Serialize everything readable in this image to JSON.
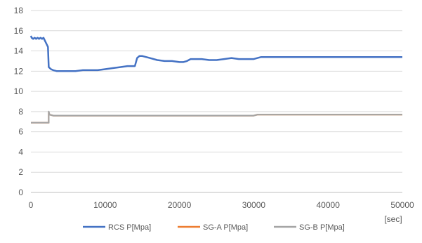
{
  "chart_data": {
    "type": "line",
    "title": "",
    "xlabel": "[sec]",
    "ylabel": "",
    "xlim": [
      0,
      50000
    ],
    "ylim": [
      0,
      18
    ],
    "x_ticks": [
      0,
      10000,
      20000,
      30000,
      40000,
      50000
    ],
    "y_ticks": [
      0,
      2,
      4,
      6,
      8,
      10,
      12,
      14,
      16,
      18
    ],
    "grid": "horizontal",
    "legend_position": "bottom",
    "series": [
      {
        "name": "RCS P[Mpa]",
        "color": "#4472C4",
        "x": [
          0,
          100,
          300,
          500,
          700,
          900,
          1100,
          1300,
          1500,
          1700,
          1900,
          2100,
          2300,
          2400,
          2700,
          3000,
          3500,
          4000,
          5000,
          6000,
          7000,
          8000,
          9000,
          10000,
          11000,
          12000,
          13000,
          14000,
          14300,
          14600,
          15000,
          16000,
          17000,
          18000,
          19000,
          20000,
          20500,
          21000,
          21500,
          22000,
          23000,
          24000,
          25000,
          26000,
          27000,
          28000,
          29000,
          30000,
          30500,
          31000,
          40000,
          50000
        ],
        "y": [
          15.5,
          15.3,
          15.2,
          15.3,
          15.2,
          15.3,
          15.2,
          15.3,
          15.2,
          15.3,
          15.0,
          14.7,
          14.4,
          12.4,
          12.2,
          12.1,
          12.0,
          12.0,
          12.0,
          12.0,
          12.1,
          12.1,
          12.1,
          12.2,
          12.3,
          12.4,
          12.5,
          12.5,
          13.3,
          13.5,
          13.5,
          13.3,
          13.1,
          13.0,
          13.0,
          12.9,
          12.9,
          13.0,
          13.2,
          13.2,
          13.2,
          13.1,
          13.1,
          13.2,
          13.3,
          13.2,
          13.2,
          13.2,
          13.3,
          13.4,
          13.4,
          13.4
        ]
      },
      {
        "name": "SG-A P[Mpa]",
        "color": "#ED7D31",
        "x": [
          0,
          2400,
          2400,
          2500,
          3000,
          5000,
          10000,
          15000,
          20000,
          25000,
          30000,
          30500,
          40000,
          50000
        ],
        "y": [
          6.9,
          6.9,
          7.9,
          7.7,
          7.6,
          7.6,
          7.6,
          7.6,
          7.6,
          7.6,
          7.6,
          7.7,
          7.7,
          7.7
        ]
      },
      {
        "name": "SG-B P[Mpa]",
        "color": "#A5A5A5",
        "x": [
          0,
          2400,
          2400,
          2500,
          3000,
          5000,
          10000,
          15000,
          20000,
          25000,
          30000,
          30500,
          40000,
          50000
        ],
        "y": [
          6.9,
          6.9,
          8.0,
          7.7,
          7.6,
          7.6,
          7.6,
          7.6,
          7.6,
          7.6,
          7.6,
          7.7,
          7.7,
          7.7
        ]
      }
    ]
  }
}
